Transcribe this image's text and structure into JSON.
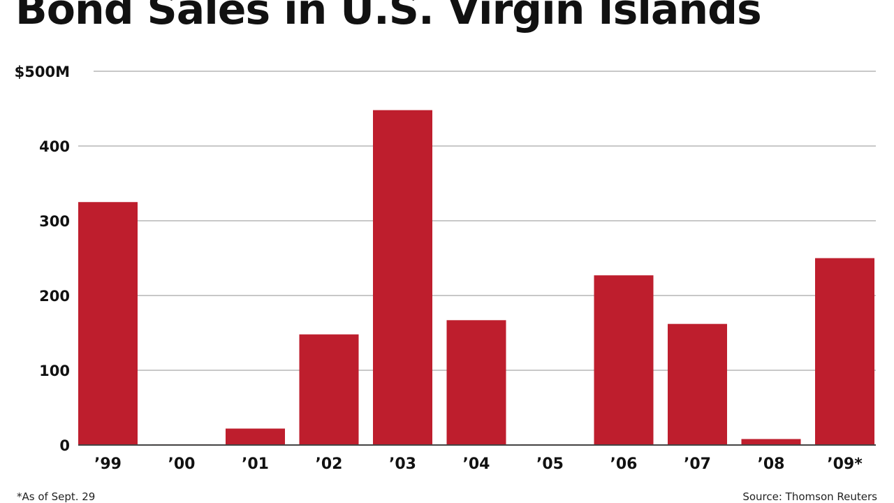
{
  "title": "Bond Sales in U.S. Virgin Islands",
  "footnote": "*As of Sept. 29",
  "source": "Source: Thomson Reuters",
  "colors": {
    "bar": "#be1e2d",
    "grid": "#c8c8c8",
    "text": "#111111"
  },
  "chart_data": {
    "type": "bar",
    "categories": [
      "’99",
      "’00",
      "’01",
      "’02",
      "’03",
      "’04",
      "’05",
      "’06",
      "’07",
      "’08",
      "’09*"
    ],
    "values": [
      325,
      1,
      22,
      148,
      448,
      167,
      1,
      227,
      162,
      8,
      250
    ],
    "ylim": [
      0,
      500
    ],
    "yticks": [
      0,
      100,
      200,
      300,
      400,
      500
    ],
    "ytick_labels": [
      "0",
      "100",
      "200",
      "300",
      "400",
      "$500M"
    ],
    "grid": true,
    "legend": "none"
  }
}
